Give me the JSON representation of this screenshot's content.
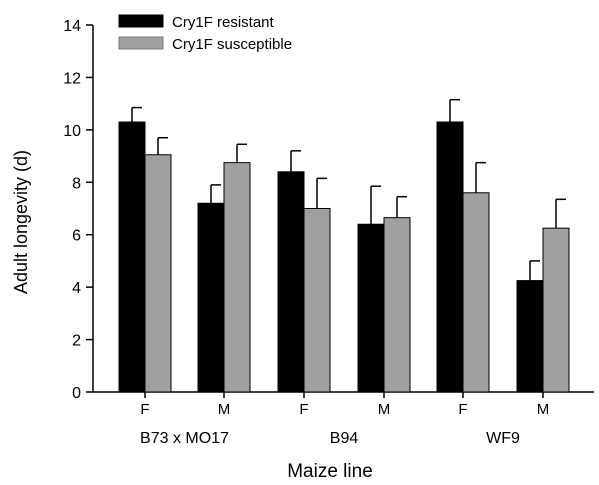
{
  "chart_data": {
    "type": "bar",
    "xlabel": "Maize line",
    "ylabel": "Adult longevity (d)",
    "ylim": [
      0,
      14
    ],
    "yticks": [
      "0",
      "2",
      "4",
      "6",
      "8",
      "10",
      "12",
      "14"
    ],
    "groups": [
      "B73 x MO17",
      "B94",
      "WF9"
    ],
    "categories": [
      "F",
      "M",
      "F",
      "M",
      "F",
      "M"
    ],
    "series": [
      {
        "name": "Cry1F resistant",
        "color": "#000000",
        "values": [
          10.3,
          7.2,
          8.4,
          6.4,
          10.3,
          4.25
        ],
        "errors": [
          0.55,
          0.7,
          0.8,
          1.45,
          0.85,
          0.75
        ]
      },
      {
        "name": "Cry1F susceptible",
        "color": "#a0a0a0",
        "values": [
          9.05,
          8.75,
          7.0,
          6.65,
          7.6,
          6.25
        ],
        "errors": [
          0.65,
          0.7,
          1.15,
          0.8,
          1.15,
          1.1
        ]
      }
    ],
    "grid": false,
    "legend_position": "top-left"
  }
}
